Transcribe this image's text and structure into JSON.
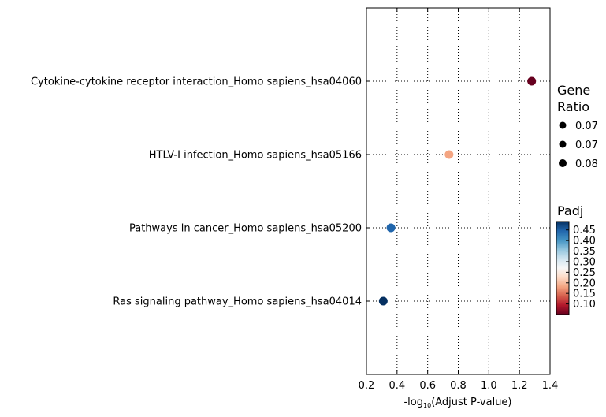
{
  "chart_data": {
    "type": "scatter",
    "title": "",
    "xlabel_prefix": "-log",
    "xlabel_subscript": "10",
    "xlabel_suffix": "(Adjust P-value)",
    "ylabel": "",
    "xlim": [
      0.2,
      1.4
    ],
    "x_ticks": [
      "0.2",
      "0.4",
      "0.6",
      "0.8",
      "1.0",
      "1.2",
      "1.4"
    ],
    "x_tick_values": [
      0.2,
      0.4,
      0.6,
      0.8,
      1.0,
      1.2,
      1.4
    ],
    "grid": true,
    "categories": [
      "Cytokine-cytokine receptor interaction_Homo sapiens_hsa04060",
      "HTLV-I infection_Homo sapiens_hsa05166",
      "Pathways in cancer_Homo sapiens_hsa05200",
      "Ras signaling pathway_Homo sapiens_hsa04014"
    ],
    "points": [
      {
        "category": "Cytokine-cytokine receptor interaction_Homo sapiens_hsa04060",
        "x": 1.28,
        "padj": 0.05,
        "color": "#67001f"
      },
      {
        "category": "HTLV-I infection_Homo sapiens_hsa05166",
        "x": 0.74,
        "padj": 0.18,
        "color": "#f4a582"
      },
      {
        "category": "Pathways in cancer_Homo sapiens_hsa05200",
        "x": 0.36,
        "padj": 0.44,
        "color": "#2166ac"
      },
      {
        "category": "Ras signaling pathway_Homo sapiens_hsa04014",
        "x": 0.31,
        "padj": 0.49,
        "color": "#053061"
      }
    ],
    "size_legend": {
      "title_line1": "Gene",
      "title_line2": "Ratio",
      "entries": [
        "0.07",
        "0.07",
        "0.08"
      ]
    },
    "color_legend": {
      "title": "Padj",
      "ticks": [
        "0.45",
        "0.40",
        "0.35",
        "0.30",
        "0.25",
        "0.20",
        "0.15",
        "0.10"
      ],
      "tick_values": [
        0.45,
        0.4,
        0.35,
        0.3,
        0.25,
        0.2,
        0.15,
        0.1
      ],
      "range": [
        0.05,
        0.49
      ],
      "colormap": [
        "#67001f",
        "#b2182b",
        "#d6604d",
        "#f4a582",
        "#fddbc7",
        "#f7f7f7",
        "#d1e5f0",
        "#92c5de",
        "#4393c3",
        "#2166ac",
        "#053061"
      ]
    }
  }
}
